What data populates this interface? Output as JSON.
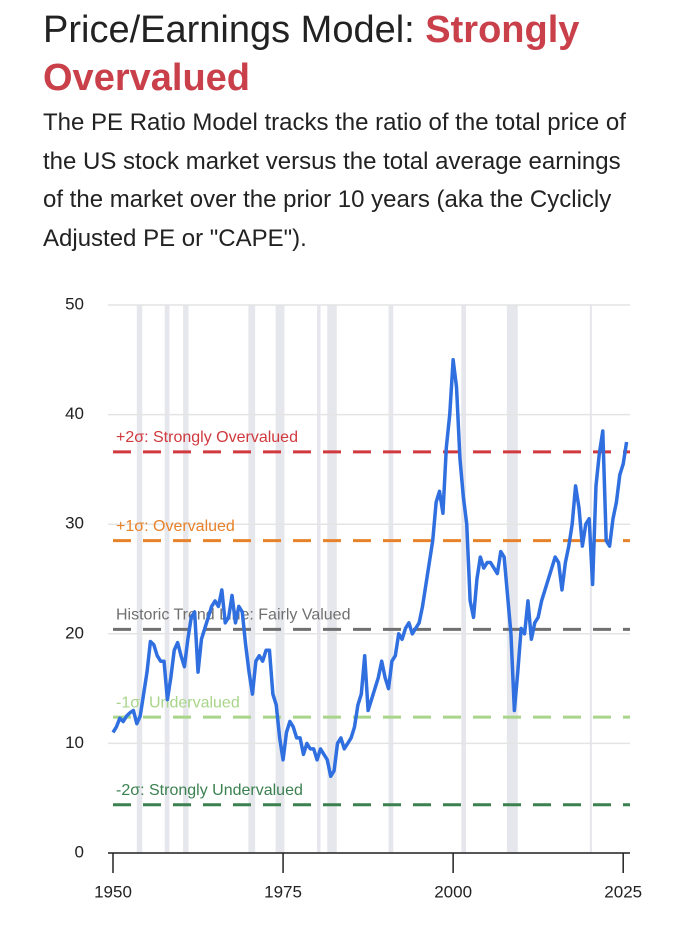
{
  "chart_data": {
    "type": "line",
    "title": "Price/Earnings Model: ",
    "title_highlight": "Strongly Overvalued",
    "title_highlight_color": "#c9404a",
    "description": "The PE Ratio Model tracks the ratio of the total price of the US stock market versus the total average earnings of the market over the prior 10 years (aka the Cyclicly Adjusted PE or \"CAPE\").",
    "xlim": [
      1950,
      2026
    ],
    "xticks": [
      1950,
      1975,
      2000,
      2025
    ],
    "ylim": [
      0,
      50
    ],
    "yticks": [
      0,
      10,
      20,
      30,
      40,
      50
    ],
    "grid": true,
    "recessions": [
      [
        1953.5,
        1954.3
      ],
      [
        1957.6,
        1958.3
      ],
      [
        1960.3,
        1961.1
      ],
      [
        1969.9,
        1970.9
      ],
      [
        1973.9,
        1975.2
      ],
      [
        1980.0,
        1980.5
      ],
      [
        1981.5,
        1982.9
      ],
      [
        1990.5,
        1991.2
      ],
      [
        2001.2,
        2001.9
      ],
      [
        2007.9,
        2009.5
      ],
      [
        2020.1,
        2020.4
      ]
    ],
    "reference_lines": [
      {
        "label": "+2σ: Strongly Overvalued",
        "value": 36.6,
        "color": "#d0393e"
      },
      {
        "label": "+1σ: Overvalued",
        "value": 28.5,
        "color": "#e8822a"
      },
      {
        "label": "Historic Trend Line: Fairly Valued",
        "value": 20.4,
        "color": "#707070"
      },
      {
        "label": "-1σ: Undervalued",
        "value": 12.4,
        "color": "#a8d58a"
      },
      {
        "label": "-2σ: Strongly Undervalued",
        "value": 4.4,
        "color": "#3b8150"
      }
    ],
    "series": [
      {
        "name": "CAPE",
        "color": "#2f6fe0",
        "x": [
          1950,
          1950.5,
          1951,
          1951.5,
          1952,
          1952.5,
          1953,
          1953.5,
          1954,
          1954.5,
          1955,
          1955.5,
          1956,
          1956.5,
          1957,
          1957.5,
          1958,
          1958.5,
          1959,
          1959.5,
          1960,
          1960.5,
          1961,
          1961.5,
          1962,
          1962.5,
          1963,
          1963.5,
          1964,
          1964.5,
          1965,
          1965.5,
          1966,
          1966.5,
          1967,
          1967.5,
          1968,
          1968.5,
          1969,
          1969.5,
          1970,
          1970.5,
          1971,
          1971.5,
          1972,
          1972.5,
          1973,
          1973.5,
          1974,
          1974.5,
          1975,
          1975.5,
          1976,
          1976.5,
          1977,
          1977.5,
          1978,
          1978.5,
          1979,
          1979.5,
          1980,
          1980.5,
          1981,
          1981.5,
          1982,
          1982.5,
          1983,
          1983.5,
          1984,
          1984.5,
          1985,
          1985.5,
          1986,
          1986.5,
          1987,
          1987.5,
          1988,
          1988.5,
          1989,
          1989.5,
          1990,
          1990.5,
          1991,
          1991.5,
          1992,
          1992.5,
          1993,
          1993.5,
          1994,
          1994.5,
          1995,
          1995.5,
          1996,
          1996.5,
          1997,
          1997.5,
          1998,
          1998.5,
          1999,
          1999.5,
          2000,
          2000.5,
          2001,
          2001.5,
          2002,
          2002.5,
          2003,
          2003.5,
          2004,
          2004.5,
          2005,
          2005.5,
          2006,
          2006.5,
          2007,
          2007.5,
          2008,
          2008.5,
          2009,
          2009.5,
          2010,
          2010.5,
          2011,
          2011.5,
          2012,
          2012.5,
          2013,
          2013.5,
          2014,
          2014.5,
          2015,
          2015.5,
          2016,
          2016.5,
          2017,
          2017.5,
          2018,
          2018.5,
          2019,
          2019.5,
          2020,
          2020.5,
          2021,
          2021.5,
          2022,
          2022.5,
          2023,
          2023.5,
          2024,
          2024.5,
          2025,
          2025.5
        ],
        "values": [
          11.0,
          11.5,
          12.3,
          12.0,
          12.5,
          12.8,
          13.0,
          11.8,
          12.5,
          14.5,
          16.5,
          19.3,
          19.0,
          18.0,
          17.5,
          17.5,
          14.0,
          16.0,
          18.5,
          19.2,
          18.0,
          17.0,
          19.5,
          21.5,
          22.0,
          16.5,
          19.5,
          20.5,
          21.5,
          22.5,
          23.0,
          22.5,
          24.0,
          21.0,
          21.5,
          23.5,
          21.0,
          22.5,
          22.0,
          19.0,
          16.5,
          14.5,
          17.5,
          18.0,
          17.5,
          18.5,
          18.5,
          14.5,
          13.5,
          10.5,
          8.5,
          11.0,
          12.0,
          11.5,
          10.5,
          10.5,
          9.0,
          10.0,
          9.5,
          9.5,
          8.5,
          9.5,
          9.0,
          8.5,
          7.0,
          7.5,
          10.0,
          10.5,
          9.5,
          10.0,
          10.5,
          11.5,
          13.5,
          14.5,
          18.0,
          13.0,
          14.0,
          15.0,
          16.0,
          17.5,
          16.0,
          15.0,
          17.5,
          18.0,
          20.0,
          19.5,
          20.5,
          21.0,
          20.0,
          20.5,
          21.0,
          22.5,
          24.5,
          26.5,
          28.5,
          32.0,
          33.0,
          31.0,
          37.0,
          40.0,
          45.0,
          42.5,
          36.0,
          32.5,
          30.0,
          23.0,
          21.5,
          25.0,
          27.0,
          26.0,
          26.5,
          26.5,
          26.0,
          25.5,
          27.5,
          27.0,
          23.5,
          20.0,
          13.0,
          16.5,
          20.5,
          20.0,
          23.0,
          19.5,
          21.0,
          21.5,
          23.0,
          24.0,
          25.0,
          26.0,
          27.0,
          26.5,
          24.0,
          26.5,
          28.0,
          30.0,
          33.5,
          31.5,
          28.0,
          30.0,
          30.5,
          24.5,
          33.5,
          36.5,
          38.5,
          28.5,
          28.0,
          30.5,
          32.0,
          34.5,
          35.5,
          37.5
        ]
      }
    ]
  }
}
